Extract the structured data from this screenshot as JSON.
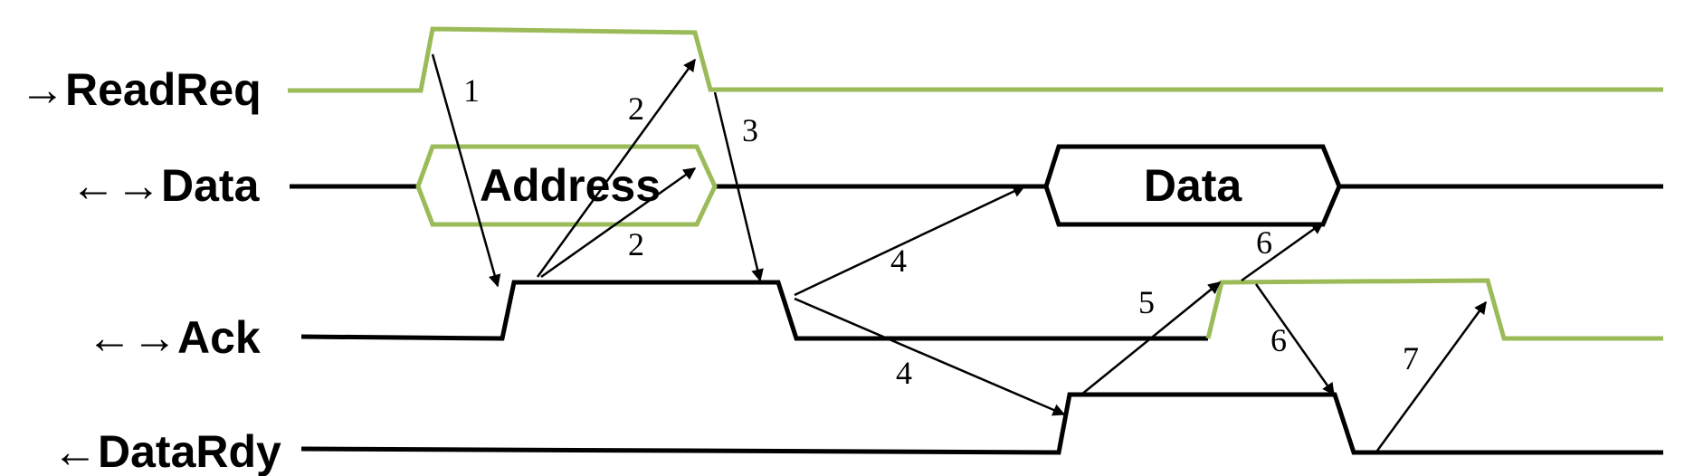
{
  "colors": {
    "accent": "#9bbb59",
    "ink": "#000000"
  },
  "signals": {
    "readreq": "→ReadReq",
    "data": "←→Data",
    "ack": "←→Ack",
    "datardy": "←DataRdy"
  },
  "bus": {
    "address": "Address",
    "data": "Data"
  },
  "steps": {
    "s1": "1",
    "s2a": "2",
    "s2b": "2",
    "s3": "3",
    "s4a": "4",
    "s4b": "4",
    "s5": "5",
    "s6a": "6",
    "s6b": "6",
    "s7": "7"
  }
}
